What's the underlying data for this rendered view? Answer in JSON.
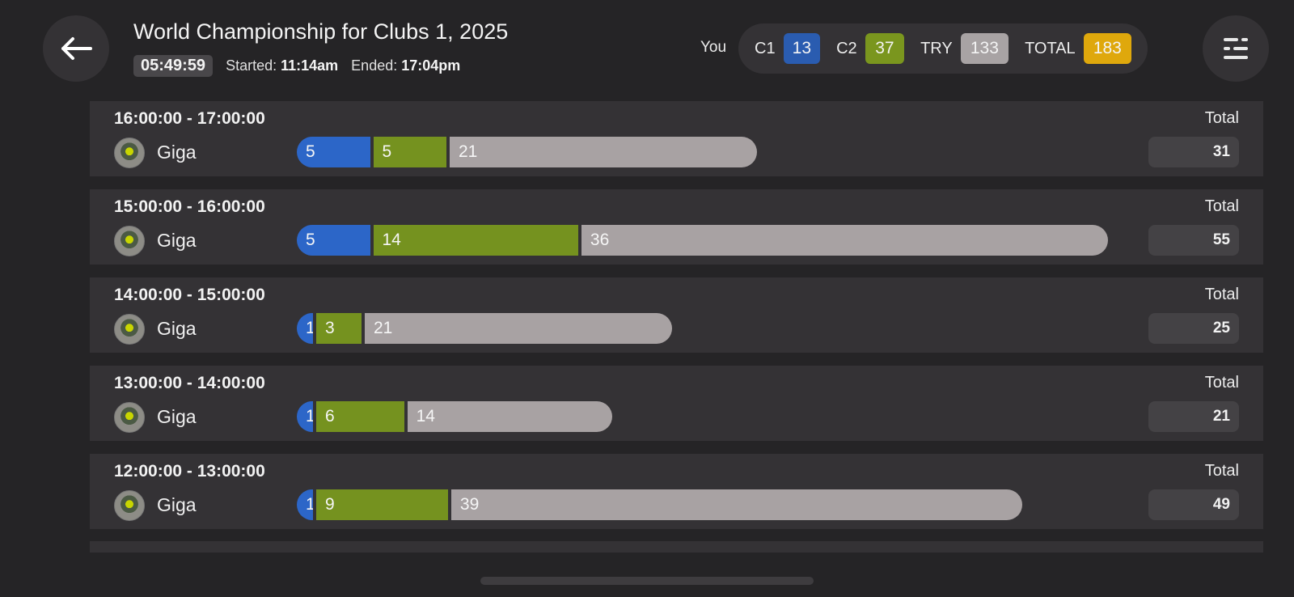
{
  "header": {
    "title": "World Championship for Clubs 1, 2025",
    "timer": "05:49:59",
    "started_label": "Started:",
    "started_value": "11:14am",
    "ended_label": "Ended:",
    "ended_value": "17:04pm"
  },
  "summary": {
    "you_label": "You",
    "c1_label": "C1",
    "c1_value": "13",
    "c2_label": "C2",
    "c2_value": "37",
    "try_label": "TRY",
    "try_value": "133",
    "total_label": "TOTAL",
    "total_value": "183"
  },
  "colors": {
    "c1": "#2c66c8",
    "c2": "#75921f",
    "try": "#a8a2a3",
    "total": "#dfa80c",
    "background": "#252426",
    "row_background": "#343235"
  },
  "icons": {
    "back": "arrow-left-icon",
    "menu": "menu-lines-icon"
  },
  "rows": [
    {
      "time": "16:00:00 - 17:00:00",
      "total_label": "Total",
      "name": "Giga",
      "c1": 5,
      "c2": 5,
      "try": 21,
      "total": "31"
    },
    {
      "time": "15:00:00 - 16:00:00",
      "total_label": "Total",
      "name": "Giga",
      "c1": 5,
      "c2": 14,
      "try": 36,
      "total": "55"
    },
    {
      "time": "14:00:00 - 15:00:00",
      "total_label": "Total",
      "name": "Giga",
      "c1": 1,
      "c2": 3,
      "try": 21,
      "total": "25"
    },
    {
      "time": "13:00:00 - 14:00:00",
      "total_label": "Total",
      "name": "Giga",
      "c1": 1,
      "c2": 6,
      "try": 14,
      "total": "21"
    },
    {
      "time": "12:00:00 - 13:00:00",
      "total_label": "Total",
      "name": "Giga",
      "c1": 1,
      "c2": 9,
      "try": 39,
      "total": "49"
    }
  ]
}
